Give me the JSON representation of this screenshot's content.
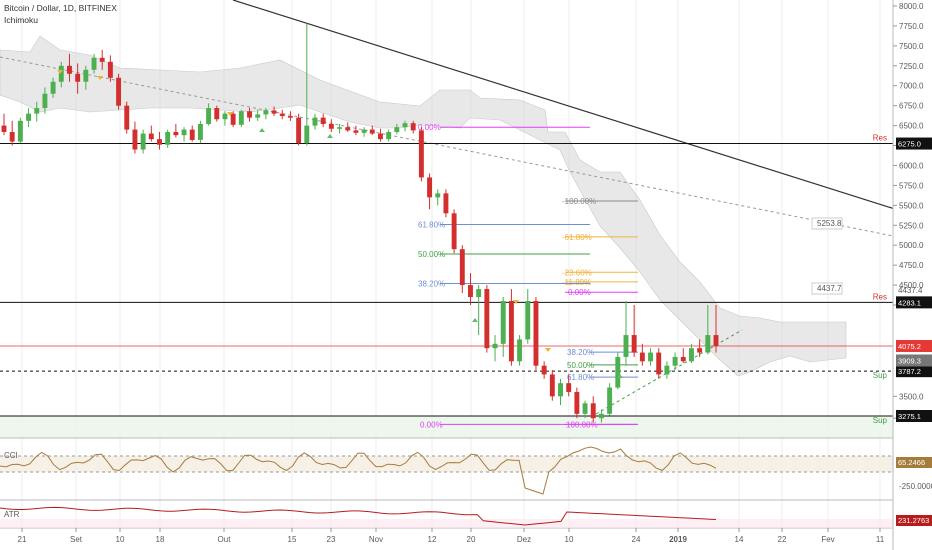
{
  "header": {
    "symbol": "Bitcoin / Dollar, 1D, BITFINEX",
    "indicator": "Ichimoku"
  },
  "colors": {
    "up": "#4caf50",
    "down": "#d32f2f",
    "cloud": "#d6d6d6",
    "res_line": "#000000",
    "sup_line": "#000000",
    "price_red": "#e53935",
    "cci_line": "#a67c3d",
    "atr_line": "#b71c1c",
    "fib_pink": "#e040fb",
    "fib_blue": "#6d8fd4",
    "fib_green": "#43a047",
    "fib_orange": "#f0b33a",
    "fib_gray": "#888888"
  },
  "chart_data": {
    "type": "candlestick",
    "price_axis": {
      "ticks": [
        "8000.0",
        "7750.0",
        "7500.0",
        "7250.0",
        "7000.0",
        "6750.0",
        "6500.0",
        "6250.0",
        "6000.0",
        "5750.0",
        "5500.0",
        "5250.0",
        "5000.0",
        "4750.0",
        "4500.0",
        "4250.0",
        "3500.0",
        "3250.0",
        "3000.0"
      ],
      "ylim": [
        2950,
        8000
      ]
    },
    "x_ticks": [
      "21",
      "Set",
      "10",
      "18",
      "Out",
      "15",
      "23",
      "Nov",
      "12",
      "20",
      "Dez",
      "10",
      "24",
      "2019",
      "14",
      "22",
      "Fev",
      "11"
    ],
    "levels": [
      {
        "value": 6275.0,
        "label": "Res",
        "tag": "6275.0",
        "style": "solid"
      },
      {
        "value": 4283.1,
        "label": "Res",
        "tag": "4283.1",
        "style": "solid"
      },
      {
        "value": 3787.2,
        "label": "Sup",
        "tag": "3787.2",
        "style": "dashed"
      },
      {
        "value": 3275.1,
        "label": "Sup",
        "tag": "3275.1",
        "style": "solid"
      }
    ],
    "current_price": {
      "value": 4075.2,
      "tag": "4075.2"
    },
    "price_tags_gray": [
      {
        "value": 3909.3,
        "tag": "3909.3"
      },
      {
        "value": 4437.4,
        "tag": "4437.4"
      }
    ],
    "annotations": [
      {
        "text": "5253.8",
        "value": 5253.8
      },
      {
        "text": "4437.7",
        "value": 4437.7
      }
    ],
    "fib_set_1": [
      {
        "label": "0.00%",
        "value": 6480,
        "color": "pink"
      },
      {
        "label": "-100.00%",
        "value": 5555,
        "color": "gray"
      },
      {
        "label": "61.80%",
        "value": 5260,
        "color": "blue"
      },
      {
        "label": "-61.80%",
        "value": 5105,
        "color": "orange"
      },
      {
        "label": "50.00%",
        "value": 4890,
        "color": "green"
      },
      {
        "label": "-23.60%",
        "value": 4660,
        "color": "orange"
      },
      {
        "label": "-11.80%",
        "value": 4540,
        "color": "orange"
      },
      {
        "label": "38.20%",
        "value": 4520,
        "color": "blue"
      },
      {
        "label": "0.00%",
        "value": 4410,
        "color": "pink"
      },
      {
        "label": "38.20%",
        "value": 4005,
        "color": "blue"
      },
      {
        "label": "50.00%",
        "value": 3860,
        "color": "green"
      },
      {
        "label": "61.80%",
        "value": 3720,
        "color": "blue"
      },
      {
        "label": "0.00%",
        "value": 3180,
        "color": "pink"
      },
      {
        "label": "100.00%",
        "value": 3180,
        "color": "pink"
      }
    ],
    "candles": [
      [
        6500,
        6650,
        6380,
        6420
      ],
      [
        6420,
        6560,
        6250,
        6300
      ],
      [
        6300,
        6600,
        6280,
        6560
      ],
      [
        6560,
        6720,
        6480,
        6650
      ],
      [
        6650,
        6800,
        6550,
        6720
      ],
      [
        6720,
        6980,
        6650,
        6900
      ],
      [
        6900,
        7100,
        6850,
        7050
      ],
      [
        7050,
        7300,
        6980,
        7250
      ],
      [
        7250,
        7400,
        7050,
        7150
      ],
      [
        7150,
        7280,
        6900,
        7050
      ],
      [
        7050,
        7250,
        6950,
        7200
      ],
      [
        7200,
        7400,
        7150,
        7350
      ],
      [
        7350,
        7450,
        7200,
        7300
      ],
      [
        7300,
        7380,
        7050,
        7100
      ],
      [
        7100,
        7150,
        6700,
        6750
      ],
      [
        6750,
        6800,
        6400,
        6450
      ],
      [
        6450,
        6550,
        6150,
        6200
      ],
      [
        6200,
        6450,
        6150,
        6400
      ],
      [
        6400,
        6500,
        6300,
        6330
      ],
      [
        6330,
        6420,
        6200,
        6260
      ],
      [
        6260,
        6450,
        6220,
        6420
      ],
      [
        6420,
        6520,
        6350,
        6380
      ],
      [
        6380,
        6480,
        6300,
        6450
      ],
      [
        6450,
        6500,
        6300,
        6320
      ],
      [
        6320,
        6560,
        6280,
        6520
      ],
      [
        6520,
        6780,
        6500,
        6720
      ],
      [
        6720,
        6750,
        6550,
        6580
      ],
      [
        6580,
        6680,
        6500,
        6650
      ],
      [
        6650,
        6680,
        6480,
        6510
      ],
      [
        6510,
        6700,
        6480,
        6680
      ],
      [
        6680,
        6720,
        6550,
        6600
      ],
      [
        6600,
        6700,
        6560,
        6640
      ],
      [
        6640,
        6720,
        6580,
        6690
      ],
      [
        6690,
        6740,
        6620,
        6650
      ],
      [
        6650,
        6700,
        6580,
        6620
      ],
      [
        6620,
        6680,
        6560,
        6600
      ],
      [
        6600,
        6650,
        6250,
        6280
      ],
      [
        6280,
        7780,
        6250,
        6500
      ],
      [
        6500,
        6650,
        6450,
        6600
      ],
      [
        6600,
        6650,
        6480,
        6520
      ],
      [
        6520,
        6580,
        6420,
        6460
      ],
      [
        6460,
        6520,
        6400,
        6480
      ],
      [
        6480,
        6540,
        6420,
        6440
      ],
      [
        6440,
        6500,
        6380,
        6410
      ],
      [
        6410,
        6480,
        6360,
        6450
      ],
      [
        6450,
        6500,
        6380,
        6400
      ],
      [
        6400,
        6460,
        6300,
        6330
      ],
      [
        6330,
        6450,
        6300,
        6420
      ],
      [
        6420,
        6520,
        6390,
        6480
      ],
      [
        6480,
        6560,
        6430,
        6530
      ],
      [
        6530,
        6560,
        6400,
        6440
      ],
      [
        6440,
        6480,
        5800,
        5850
      ],
      [
        5850,
        5900,
        5450,
        5600
      ],
      [
        5600,
        5700,
        5500,
        5650
      ],
      [
        5650,
        5700,
        5350,
        5400
      ],
      [
        5400,
        5450,
        4900,
        4950
      ],
      [
        4950,
        5000,
        4400,
        4500
      ],
      [
        4500,
        4650,
        4250,
        4350
      ],
      [
        4350,
        4500,
        4200,
        4450
      ],
      [
        4450,
        4500,
        4000,
        4050
      ],
      [
        4050,
        4200,
        3900,
        4100
      ],
      [
        4100,
        4350,
        3950,
        4300
      ],
      [
        4300,
        4450,
        3850,
        3900
      ],
      [
        3900,
        4200,
        3850,
        4150
      ],
      [
        4150,
        4450,
        4100,
        4300
      ],
      [
        4300,
        4350,
        3800,
        3850
      ],
      [
        3850,
        3900,
        3700,
        3750
      ],
      [
        3750,
        3800,
        3450,
        3500
      ],
      [
        3500,
        3700,
        3400,
        3650
      ],
      [
        3650,
        3750,
        3500,
        3550
      ],
      [
        3550,
        3600,
        3250,
        3300
      ],
      [
        3300,
        3450,
        3250,
        3420
      ],
      [
        3420,
        3500,
        3200,
        3250
      ],
      [
        3250,
        3350,
        3200,
        3300
      ],
      [
        3300,
        3650,
        3280,
        3600
      ],
      [
        3600,
        4000,
        3580,
        3950
      ],
      [
        3950,
        4300,
        3850,
        4200
      ],
      [
        4200,
        4250,
        3950,
        4000
      ],
      [
        4000,
        4100,
        3850,
        3900
      ],
      [
        3900,
        4050,
        3850,
        4000
      ],
      [
        4000,
        4050,
        3700,
        3750
      ],
      [
        3750,
        3900,
        3700,
        3850
      ],
      [
        3850,
        4000,
        3800,
        3950
      ],
      [
        3950,
        4050,
        3880,
        3900
      ],
      [
        3900,
        4100,
        3880,
        4050
      ],
      [
        4050,
        4150,
        3950,
        4000
      ],
      [
        4000,
        4250,
        3980,
        4200
      ],
      [
        4200,
        4250,
        4000,
        4075
      ]
    ],
    "indicators": [
      {
        "name": "CCI",
        "value_tag": "65.2466",
        "axis_label": "-250.0000"
      },
      {
        "name": "ATR",
        "value_tag": "231.2763"
      }
    ]
  }
}
